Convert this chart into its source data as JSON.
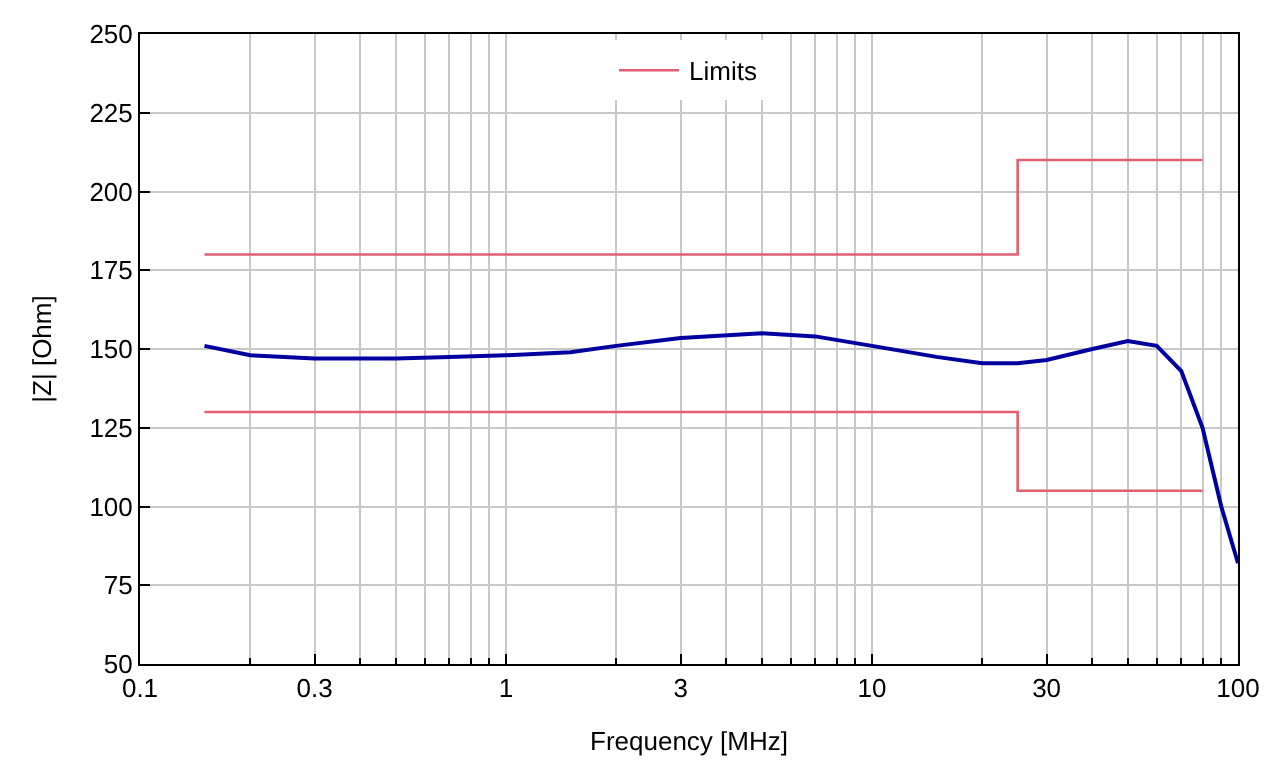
{
  "chart_data": {
    "type": "line",
    "xlabel": "Frequency [MHz]",
    "ylabel": "|Z| [Ohm]",
    "log": "x",
    "grid": true,
    "legend": "top",
    "marker": "none",
    "line_style": "solid",
    "xlim": [
      0.1,
      100
    ],
    "xticks": [
      0.1,
      0.3,
      1,
      3,
      10,
      30,
      100
    ],
    "ylim": [
      50,
      250
    ],
    "yticks": [
      50,
      75,
      100,
      125,
      150,
      175,
      200,
      225,
      250
    ],
    "series": [
      {
        "color": "#0000a0",
        "x": [
          0.15,
          0.2,
          0.3,
          0.5,
          0.7,
          1,
          1.5,
          2,
          3,
          5,
          7,
          10,
          15,
          20,
          25,
          30,
          40,
          50,
          60,
          70,
          80,
          90,
          100
        ],
        "values": [
          151,
          148,
          147,
          147,
          147.5,
          148,
          149,
          151,
          153.5,
          155,
          154,
          151,
          147.5,
          145.5,
          145.5,
          146.5,
          150,
          152.5,
          151,
          143,
          125,
          100,
          82
        ]
      },
      {
        "name": "Limits",
        "color": "#e06070",
        "x": [
          0.15,
          25,
          25,
          80,
          null,
          0.15,
          25,
          25,
          80
        ],
        "values": [
          180,
          180,
          210,
          210,
          null,
          130,
          130,
          105,
          105
        ]
      }
    ]
  }
}
